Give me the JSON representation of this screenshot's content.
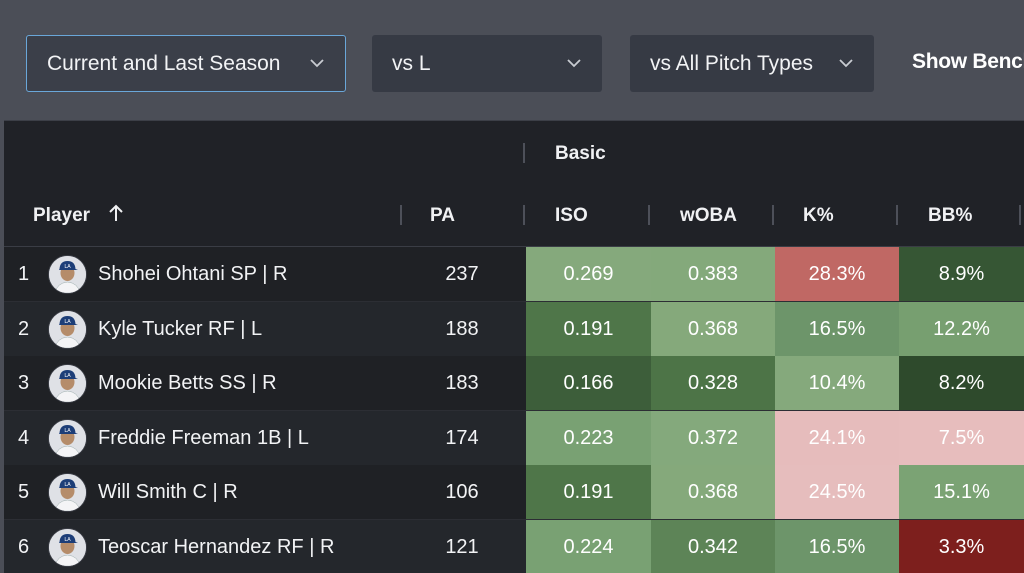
{
  "filters": {
    "season": {
      "value": "Current and Last Season",
      "icon": "chevron-down-icon"
    },
    "split": {
      "value": "vs L",
      "icon": "chevron-down-icon"
    },
    "pitch": {
      "value": "vs All Pitch Types",
      "icon": "chevron-down-icon"
    },
    "show_bench": "Show Bench"
  },
  "table": {
    "group_label": "Basic",
    "columns": {
      "player": "Player",
      "sort_icon": "arrow-up-icon",
      "pa": "PA",
      "iso": "ISO",
      "woba": "wOBA",
      "k": "K%",
      "bb": "BB%"
    },
    "rows": [
      {
        "rank": "1",
        "name": "Shohei Ohtani SP | R",
        "pa": "237",
        "iso": "0.269",
        "woba": "0.383",
        "k": "28.3%",
        "bb": "8.9%",
        "colors": {
          "iso": "#85a97c",
          "woba": "#84a97b",
          "k": "#c06864",
          "bb": "#365634"
        }
      },
      {
        "rank": "2",
        "name": "Kyle Tucker RF | L",
        "pa": "188",
        "iso": "0.191",
        "woba": "0.368",
        "k": "16.5%",
        "bb": "12.2%",
        "colors": {
          "iso": "#4f7649",
          "woba": "#85a97b",
          "k": "#6d956a",
          "bb": "#779f70"
        }
      },
      {
        "rank": "3",
        "name": "Mookie Betts SS | R",
        "pa": "183",
        "iso": "0.166",
        "woba": "0.328",
        "k": "10.4%",
        "bb": "8.2%",
        "colors": {
          "iso": "#3d5e3a",
          "woba": "#4d7447",
          "k": "#85a97c",
          "bb": "#2e4a2c"
        }
      },
      {
        "rank": "4",
        "name": "Freddie Freeman 1B | L",
        "pa": "174",
        "iso": "0.223",
        "woba": "0.372",
        "k": "24.1%",
        "bb": "7.5%",
        "colors": {
          "iso": "#79a173",
          "woba": "#84a97c",
          "k": "#e6bcbc",
          "bb": "#e7bdbd"
        }
      },
      {
        "rank": "5",
        "name": "Will Smith C | R",
        "pa": "106",
        "iso": "0.191",
        "woba": "0.368",
        "k": "24.5%",
        "bb": "15.1%",
        "colors": {
          "iso": "#4f7649",
          "woba": "#85a97b",
          "k": "#e6bdbd",
          "bb": "#7ba374"
        }
      },
      {
        "rank": "6",
        "name": "Teoscar Hernandez RF | R",
        "pa": "121",
        "iso": "0.224",
        "woba": "0.342",
        "k": "16.5%",
        "bb": "3.3%",
        "colors": {
          "iso": "#79a173",
          "woba": "#5d8457",
          "k": "#6d956a",
          "bb": "#7d1f1d"
        }
      }
    ]
  }
}
